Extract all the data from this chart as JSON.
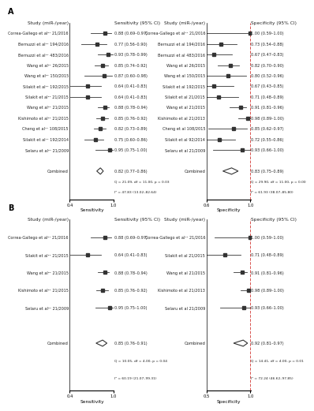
{
  "panel_A": {
    "sensitivity": {
      "studies": [
        "Correa-Gallego et al²¹ 21/2016",
        "Bernuzzi et al²¹ 194/2016",
        "Bernuzzi et al²¹ 483/2016",
        "Wang et al²¹ 26/2015",
        "Wang et al²¹ 150/2015",
        "Silakit et al²¹ 192/2015",
        "Silakit et al²¹ 21/2015",
        "Wang et al²¹ 21/2015",
        "Kishimoto et al²¹ 21/2015",
        "Cheng et al¹¹ 108/2015",
        "Silakit et al¹¹ 192/2014",
        "Selaru et al²¹ 21/2009"
      ],
      "values": [
        0.88,
        0.77,
        0.93,
        0.85,
        0.87,
        0.64,
        0.64,
        0.88,
        0.85,
        0.82,
        0.75,
        0.95
      ],
      "lower": [
        0.69,
        0.56,
        0.78,
        0.74,
        0.6,
        0.41,
        0.41,
        0.78,
        0.76,
        0.73,
        0.6,
        0.75
      ],
      "upper": [
        0.97,
        0.9,
        0.99,
        0.92,
        0.98,
        0.83,
        0.83,
        0.94,
        0.92,
        0.89,
        0.86,
        1.0
      ],
      "labels": [
        "0.88 (0.69–0.97)",
        "0.77 (0.56–0.90)",
        "0.93 (0.78–0.99)",
        "0.85 (0.74–0.92)",
        "0.87 (0.60–0.98)",
        "0.64 (0.41–0.83)",
        "0.64 (0.41–0.83)",
        "0.88 (0.78–0.94)",
        "0.85 (0.76–0.92)",
        "0.82 (0.73–0.89)",
        "0.75 (0.60–0.86)",
        "0.95 (0.75–1.00)"
      ],
      "combined_value": 0.82,
      "combined_lower": 0.77,
      "combined_upper": 0.86,
      "combined_label": "0.82 (0.77–0.86)",
      "Q_stat": "Q = 21.09, df = 11.00, p = 0.03",
      "I2_stat": "I² = 47.83 (13.02–82.64)",
      "xmin": 0.4,
      "xmax": 1.0,
      "xticks": [
        0.4,
        1.0
      ],
      "xlabel": "Sensitivity"
    },
    "specificity": {
      "studies": [
        "Correa-Gallego et al¹¹ 21/2016",
        "Bernuzzi et al 194/2016",
        "Bernuzzi et al 483/2016",
        "Wang et al 26/2015",
        "Wang et al 150/2015",
        "Silakit et al 192/2015",
        "Silakit et al 21/2015",
        "Wang et al 21/2015",
        "Kishimoto et al 21/2013",
        "Cheng et al 108/2015",
        "Silakit et al 92/2014",
        "Selaru et al 21/2009"
      ],
      "values": [
        1.0,
        0.73,
        0.67,
        0.82,
        0.8,
        0.67,
        0.71,
        0.91,
        0.98,
        0.85,
        0.72,
        0.93
      ],
      "lower": [
        0.59,
        0.54,
        0.47,
        0.7,
        0.52,
        0.43,
        0.48,
        0.81,
        0.89,
        0.62,
        0.55,
        0.66
      ],
      "upper": [
        1.0,
        0.88,
        0.83,
        0.9,
        0.96,
        0.85,
        0.89,
        0.96,
        1.0,
        0.97,
        0.86,
        1.0
      ],
      "labels": [
        "1.00 (0.59–1.00)",
        "0.73 (0.54–0.88)",
        "0.67 (0.47–0.83)",
        "0.82 (0.70–0.90)",
        "0.80 (0.52–0.96)",
        "0.67 (0.43–0.85)",
        "0.71 (0.48–0.89)",
        "0.91 (0.81–0.96)",
        "0.98 (0.89–1.00)",
        "0.85 (0.62–0.97)",
        "0.72 (0.55–0.86)",
        "0.93 (0.66–1.00)"
      ],
      "combined_value": 0.83,
      "combined_lower": 0.75,
      "combined_upper": 0.89,
      "combined_label": "0.83 (0.75–0.89)",
      "Q_stat": "Q = 29.90, df = 11.00, p = 0.00",
      "I2_stat": "I² = 61.93 (38.07–85.80)",
      "xmin": 0.6,
      "xmax": 1.0,
      "xticks": [
        0.6,
        1.0
      ],
      "xlabel": "Specificity"
    }
  },
  "panel_B": {
    "sensitivity": {
      "studies": [
        "Correa-Gallego et al²¹ 21/2016",
        "Silakit et al²¹ 21/2015",
        "Wang et al²¹ 21/2015",
        "Kishimoto et al²¹ 21/2015",
        "Selaru et al²¹ 21/2009"
      ],
      "values": [
        0.88,
        0.64,
        0.88,
        0.85,
        0.95
      ],
      "lower": [
        0.69,
        0.41,
        0.78,
        0.76,
        0.75
      ],
      "upper": [
        0.97,
        0.83,
        0.94,
        0.92,
        1.0
      ],
      "labels": [
        "0.88 (0.69–0.97)",
        "0.64 (0.41–0.83)",
        "0.88 (0.78–0.94)",
        "0.85 (0.76–0.92)",
        "0.95 (0.75–1.00)"
      ],
      "combined_value": 0.85,
      "combined_lower": 0.76,
      "combined_upper": 0.91,
      "combined_label": "0.85 (0.76–0.91)",
      "Q_stat": "Q = 10.05, df = 4.00, p = 0.04",
      "I2_stat": "I² = 60.19 (21.07–99.31)",
      "xmin": 0.4,
      "xmax": 1.0,
      "xticks": [
        0.4,
        1.0
      ],
      "xlabel": "Sensitivity"
    },
    "specificity": {
      "studies": [
        "Correa-Gallego et al¹¹ 21/2016",
        "Silakit et al 21/2015",
        "Wang et al 21/2015",
        "Kishimoto et al 21/2013",
        "Selaru et al 21/2009"
      ],
      "values": [
        1.0,
        0.71,
        0.91,
        0.98,
        0.93
      ],
      "lower": [
        0.59,
        0.48,
        0.81,
        0.89,
        0.66
      ],
      "upper": [
        1.0,
        0.89,
        0.96,
        1.0,
        1.0
      ],
      "labels": [
        "1.00 (0.59–1.00)",
        "0.71 (0.48–0.89)",
        "0.91 (0.81–0.96)",
        "0.98 (0.89–1.00)",
        "0.93 (0.66–1.00)"
      ],
      "combined_value": 0.92,
      "combined_lower": 0.81,
      "combined_upper": 0.97,
      "combined_label": "0.92 (0.81–0.97)",
      "Q_stat": "Q = 14.41, df = 4.00, p = 0.01",
      "I2_stat": "I² = 72.24 (46.62–97.85)",
      "xmin": 0.5,
      "xmax": 1.0,
      "xticks": [
        0.5,
        1.0
      ],
      "xlabel": "Specificity"
    }
  },
  "dashed_color": "#d9534f",
  "dot_color": "#333333",
  "text_color": "#222222",
  "header_col1": "Study (miR-/year)",
  "header_col2_sens": "Sensitivity (95% CI)",
  "header_col2_spec": "Specificity (95% CI)"
}
